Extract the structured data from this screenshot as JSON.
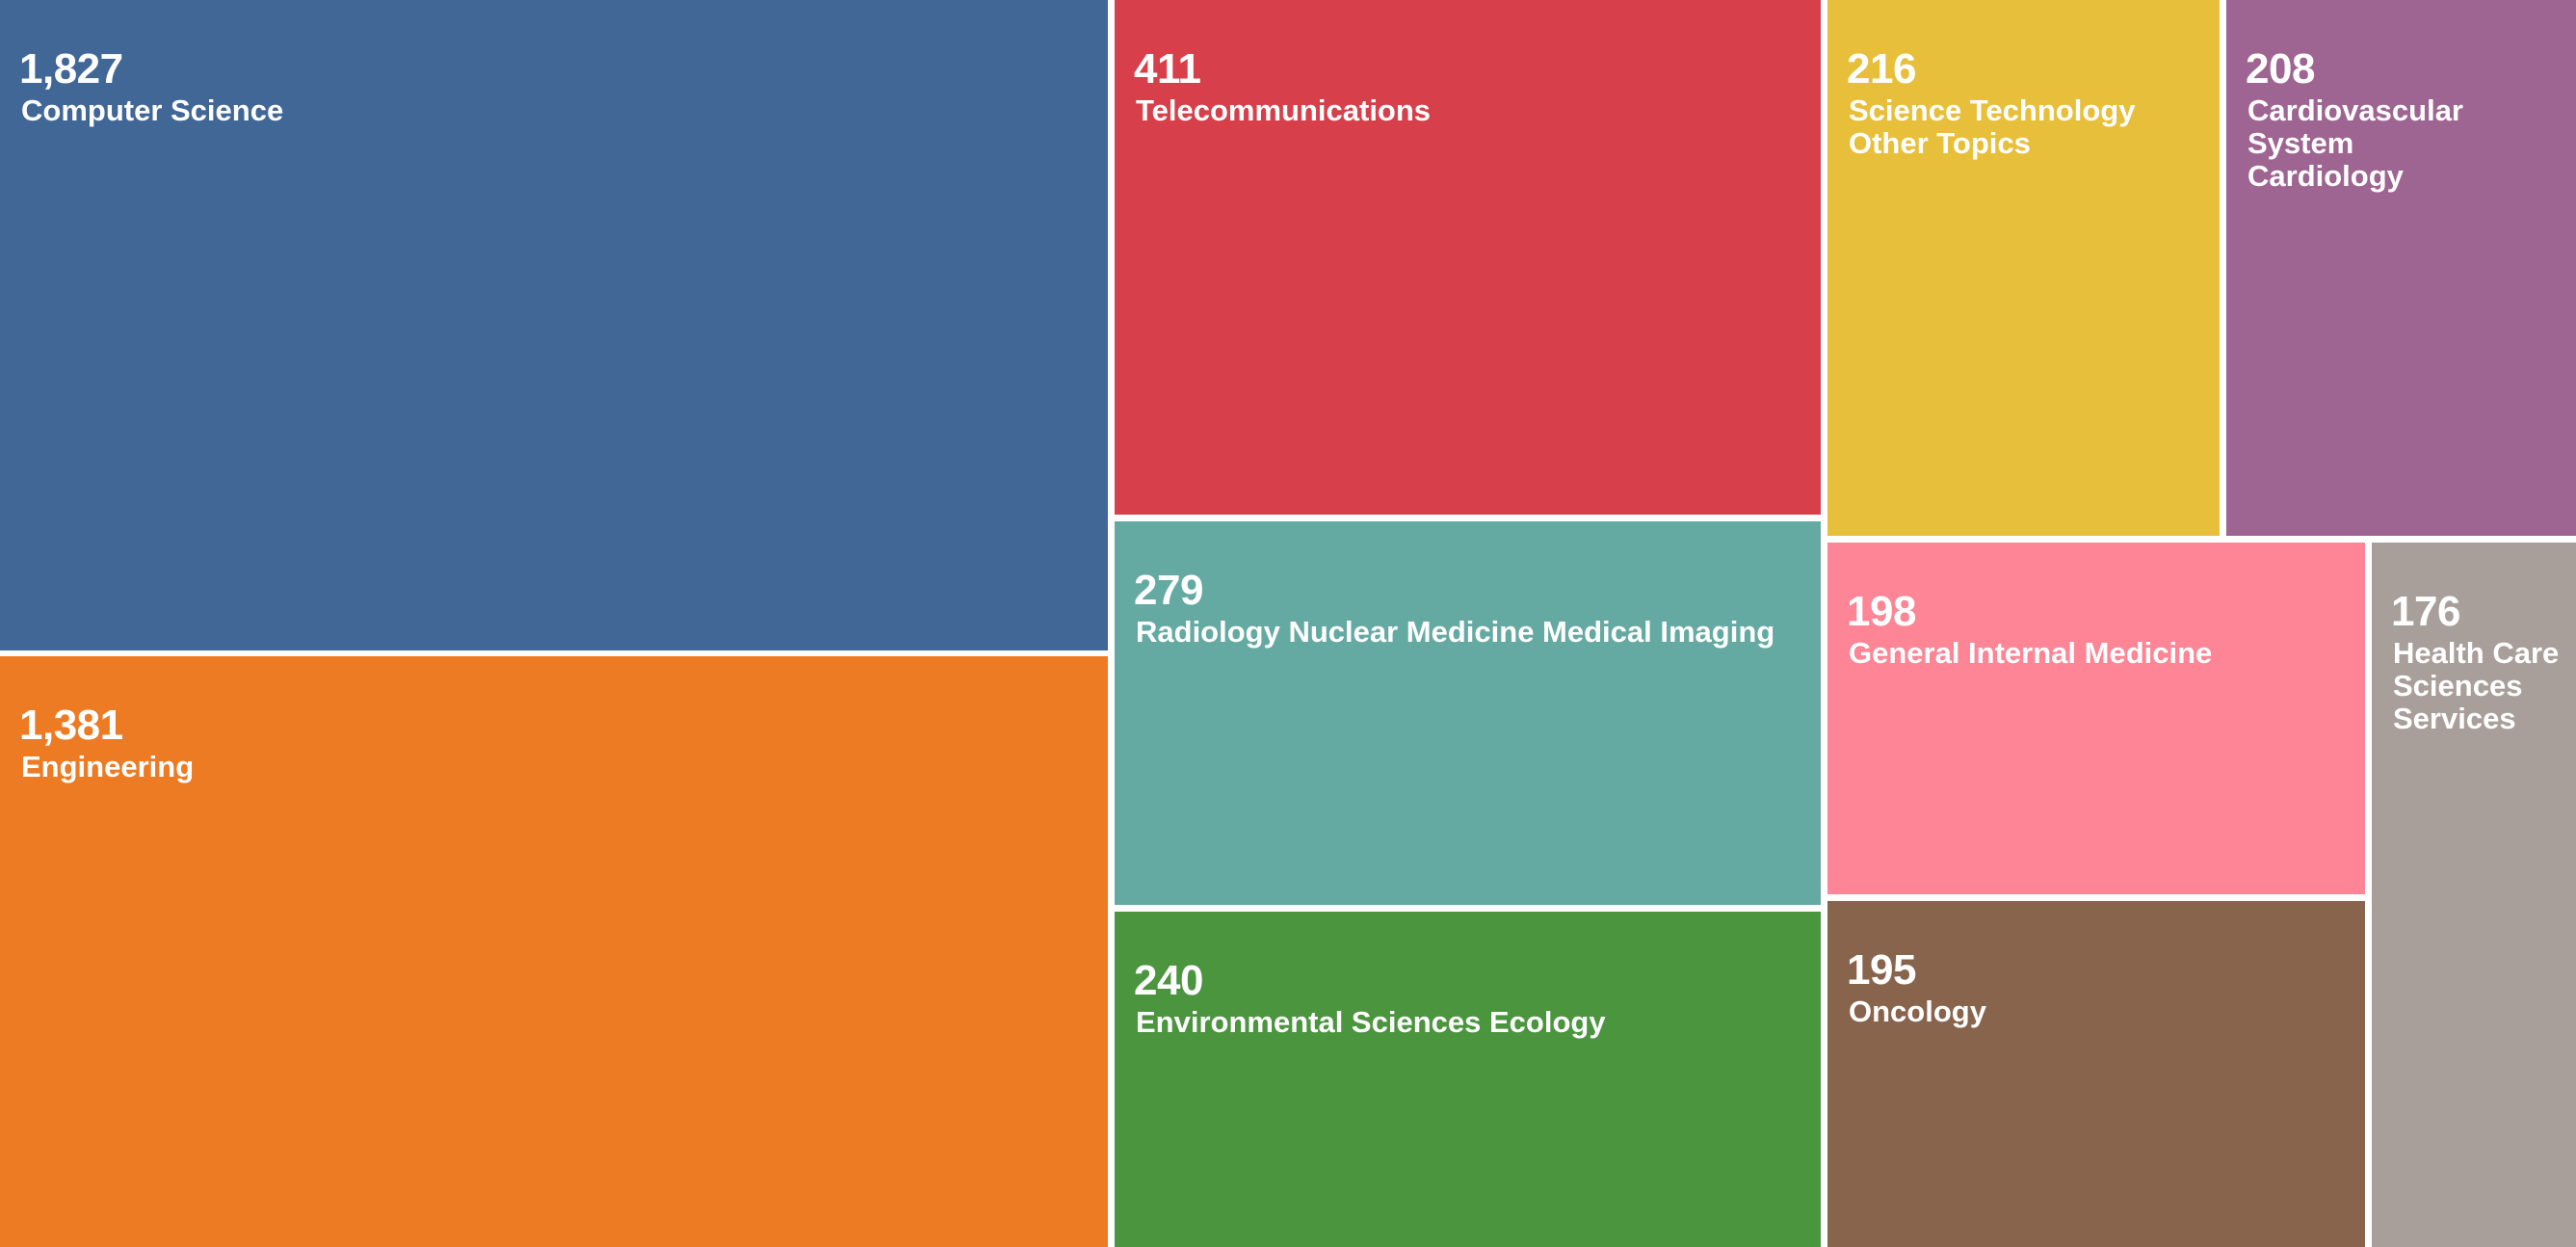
{
  "chart_data": {
    "type": "treemap",
    "title": "",
    "items": [
      {
        "name": "Computer Science",
        "label": "Computer Science",
        "value": 1827,
        "value_text": "1,827",
        "color": "#416797"
      },
      {
        "name": "Engineering",
        "label": "Engineering",
        "value": 1381,
        "value_text": "1,381",
        "color": "#ec7b24"
      },
      {
        "name": "Telecommunications",
        "label": "Telecommunications",
        "value": 411,
        "value_text": "411",
        "color": "#d73f4a"
      },
      {
        "name": "Radiology Nuclear Medicine Medical Imaging",
        "label": "Radiology Nuclear Medicine Medical Imaging",
        "value": 279,
        "value_text": "279",
        "color": "#65aaa2"
      },
      {
        "name": "Environmental Sciences Ecology",
        "label": "Environmental Sciences Ecology",
        "value": 240,
        "value_text": "240",
        "color": "#4b953f"
      },
      {
        "name": "Science Technology Other Topics",
        "label": "Science Technology\nOther Topics",
        "value": 216,
        "value_text": "216",
        "color": "#e8bf3a"
      },
      {
        "name": "Cardiovascular System Cardiology",
        "label": "Cardiovascular System\nCardiology",
        "value": 208,
        "value_text": "208",
        "color": "#9e6592"
      },
      {
        "name": "General Internal Medicine",
        "label": "General Internal Medicine",
        "value": 198,
        "value_text": "198",
        "color": "#fd8595"
      },
      {
        "name": "Oncology",
        "label": "Oncology",
        "value": 195,
        "value_text": "195",
        "color": "#88644d"
      },
      {
        "name": "Health Care Sciences Services",
        "label": "Health Care\nSciences\nServices",
        "value": 176,
        "value_text": "176",
        "color": "#a89f9b"
      }
    ]
  }
}
